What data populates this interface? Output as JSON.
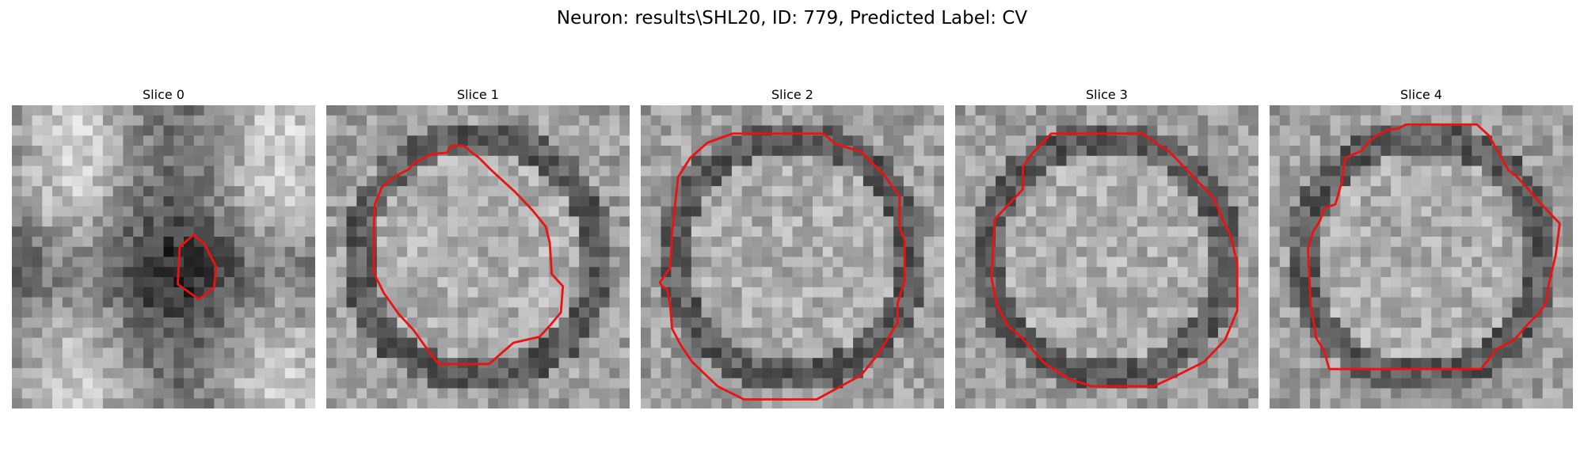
{
  "figure": {
    "title": "Neuron: results\\SHL20, ID: 779, Predicted Label: CV"
  },
  "colors": {
    "contour": "#ee1111",
    "background": "#ffffff"
  },
  "panels": [
    {
      "title": "Slice 0"
    },
    {
      "title": "Slice 1"
    },
    {
      "title": "Slice 2"
    },
    {
      "title": "Slice 3"
    },
    {
      "title": "Slice 4"
    }
  ]
}
